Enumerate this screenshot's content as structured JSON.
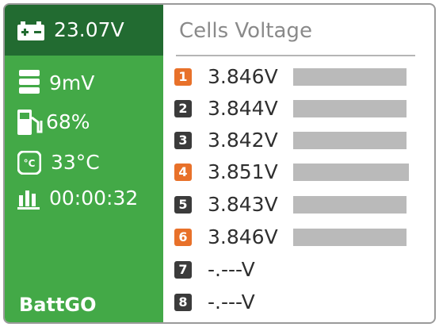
{
  "status": {
    "pack_voltage": "23.07V",
    "cell_diff": "9mV",
    "charge": "68%",
    "temperature": "33°C",
    "elapsed": "00:00:32",
    "brand": "BattGO"
  },
  "cells": {
    "title": "Cells Voltage",
    "items": [
      {
        "index": "1",
        "voltage": "3.846V"
      },
      {
        "index": "2",
        "voltage": "3.844V"
      },
      {
        "index": "3",
        "voltage": "3.842V"
      },
      {
        "index": "4",
        "voltage": "3.851V"
      },
      {
        "index": "5",
        "voltage": "3.843V"
      },
      {
        "index": "6",
        "voltage": "3.846V"
      },
      {
        "index": "7",
        "voltage": "-.---V"
      },
      {
        "index": "8",
        "voltage": "-.---V"
      }
    ]
  }
}
